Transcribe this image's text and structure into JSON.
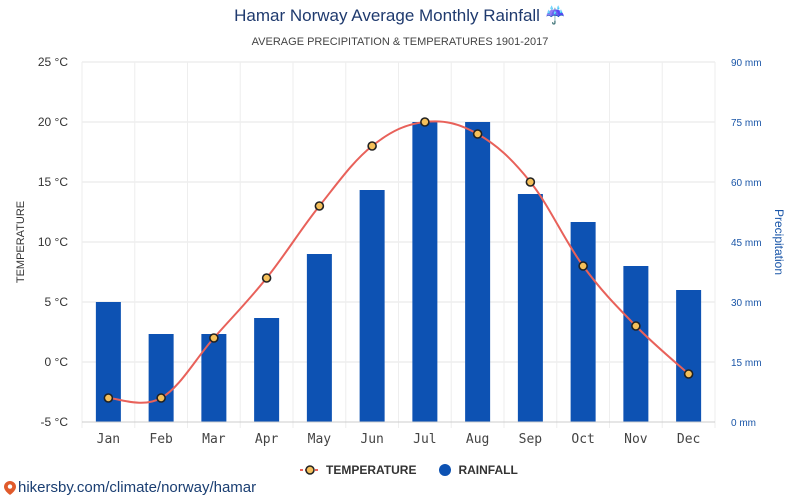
{
  "chart_data": {
    "type": "bar",
    "title": "Hamar Norway Average Monthly Rainfall ☔",
    "subtitle": "AVERAGE PRECIPITATION & TEMPERATURES 1901-2017",
    "categories": [
      "Jan",
      "Feb",
      "Mar",
      "Apr",
      "May",
      "Jun",
      "Jul",
      "Aug",
      "Sep",
      "Oct",
      "Nov",
      "Dec"
    ],
    "series": [
      {
        "name": "RAINFALL",
        "type": "bar",
        "axis": "right",
        "color": "#0d52b3",
        "values": [
          30,
          22,
          22,
          26,
          42,
          58,
          75,
          75,
          57,
          50,
          39,
          33
        ]
      },
      {
        "name": "TEMPERATURE",
        "type": "line",
        "axis": "left",
        "color": "#e8615a",
        "marker_fill": "#f5c05a",
        "values": [
          -3,
          -3,
          2,
          7,
          13,
          18,
          20,
          19,
          15,
          8,
          3,
          -1
        ]
      }
    ],
    "y_left": {
      "label": "TEMPERATURE",
      "range": [
        -5,
        25
      ],
      "ticks": [
        "-5 °C",
        "0 °C",
        "5 °C",
        "10 °C",
        "15 °C",
        "20 °C",
        "25 °C"
      ]
    },
    "y_right": {
      "label": "Precipitation",
      "range": [
        0,
        90
      ],
      "ticks": [
        "0 mm",
        "15 mm",
        "30 mm",
        "45 mm",
        "60 mm",
        "75 mm",
        "90 mm"
      ]
    },
    "grid": true,
    "legend_position": "bottom"
  },
  "footer": {
    "text": "hikersby.com/climate/norway/hamar"
  }
}
